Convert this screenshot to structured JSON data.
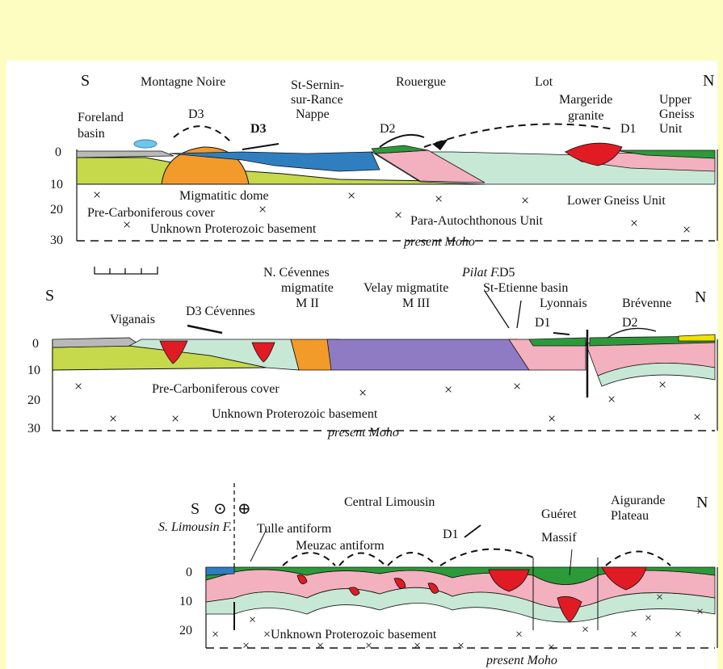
{
  "colors": {
    "page_background": "#fdfdc2",
    "panel_background": "#ffffff",
    "pre_carboniferous_cover": "#c5d94a",
    "migmatitic_dome": "#f29a2a",
    "para_autochthonous": "#c8e8d6",
    "lower_gneiss": "#f3b0bf",
    "upper_gneiss": "#2d9a3a",
    "granite": "#e01b24",
    "velay_migmatite": "#8e7bc4",
    "nappe_blue": "#2f7fc0",
    "foreland_basin": "#b9b9b9",
    "brevenne_yellow": "#f0e000"
  },
  "section1": {
    "south": "S",
    "north": "N",
    "montagne_noire": "Montagne Noire",
    "st_sernin_1": "St-Sernin-",
    "st_sernin_2": "sur-Rance",
    "st_sernin_3": "Nappe",
    "rouergue": "Rouergue",
    "lot": "Lot",
    "foreland_1": "Foreland",
    "foreland_2": "basin",
    "d3_a": "D3",
    "d3_b": "D3",
    "d2": "D2",
    "d1": "D1",
    "margeride_1": "Margeride",
    "margeride_2": "granite",
    "upper_gneiss_1": "Upper",
    "upper_gneiss_2": "Gneiss",
    "upper_gneiss_3": "Unit",
    "depth_ticks": [
      "0",
      "10",
      "20",
      "30"
    ],
    "migmatitic_dome": "Migmatitic dome",
    "pre_carboniferous": "Pre-Carboniferous cover",
    "unknown_basement": "Unknown Proterozoic basement",
    "lower_gneiss": "Lower Gneiss Unit",
    "para_autochthonous": "Para-Autochthonous Unit",
    "present_moho": "present Moho"
  },
  "section2": {
    "south": "S",
    "north": "N",
    "ncev_1": "N. Cévennes",
    "ncev_2": "migmatite",
    "ncev_3": "M II",
    "velay_1": "Velay migmatite",
    "velay_2": "M III",
    "pilat": "Pilat F.",
    "d5": "D5",
    "st_etienne": "St-Etienne basin",
    "lyonnais": "Lyonnais",
    "brevenne": "Brévenne",
    "viganais": "Viganais",
    "d3_cevennes": "D3 Cévennes",
    "d1": "D1",
    "d2": "D2",
    "depth_ticks": [
      "0",
      "10",
      "20",
      "30"
    ],
    "pre_carboniferous": "Pre-Carboniferous cover",
    "unknown_basement": "Unknown Proterozoic basement",
    "present_moho": "present Moho"
  },
  "section3": {
    "south": "S",
    "north": "N",
    "out_of_page": "⊙",
    "into_page": "⊕",
    "s_limousin": "S. Limousin F.",
    "central_limousin": "Central Limousin",
    "tulle": "Tulle antiform",
    "meuzac": "Meuzac antiform",
    "d1": "D1",
    "gueret_1": "Guéret",
    "gueret_2": "Massif",
    "aigurande_1": "Aigurande",
    "aigurande_2": "Plateau",
    "depth_ticks": [
      "0",
      "10",
      "20"
    ],
    "unknown_basement": "×Unknown Proterozoic basement",
    "present_moho": "present Moho"
  }
}
